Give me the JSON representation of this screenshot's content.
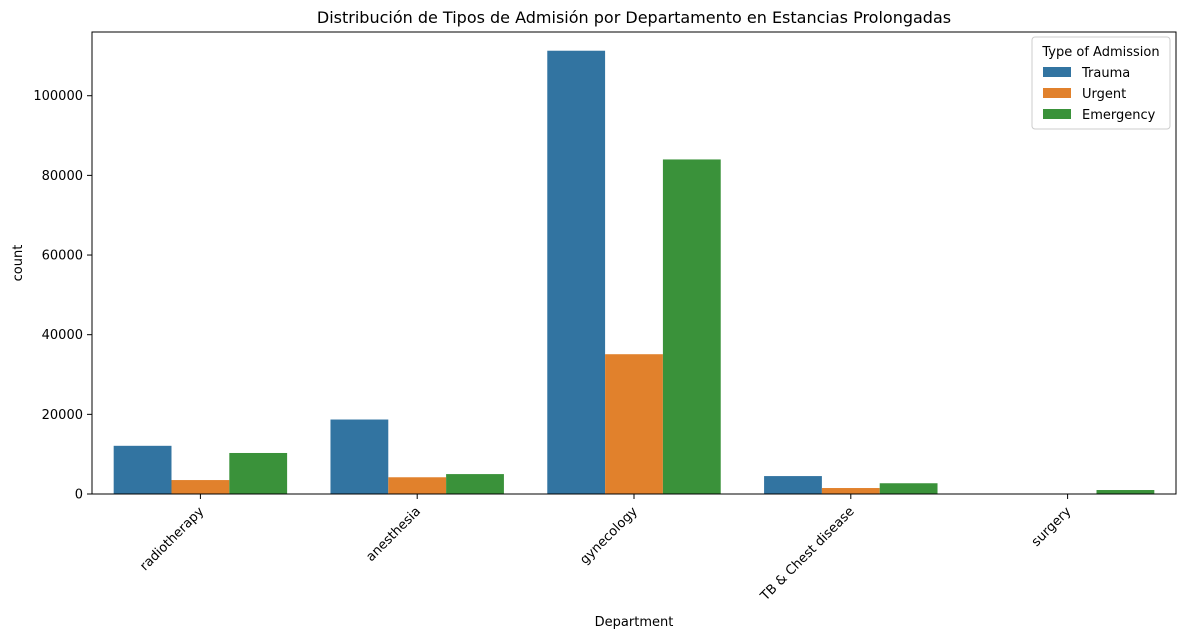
{
  "chart_data": {
    "type": "bar",
    "title": "Distribución de Tipos de Admisión por Departamento en Estancias Prolongadas",
    "xlabel": "Department",
    "ylabel": "count",
    "categories": [
      "radiotherapy",
      "anesthesia",
      "gynecology",
      "TB & Chest disease",
      "surgery"
    ],
    "series": [
      {
        "name": "Trauma",
        "color": "#3274a1",
        "values": [
          12100,
          18700,
          111300,
          4500,
          0
        ]
      },
      {
        "name": "Urgent",
        "color": "#e1812c",
        "values": [
          3500,
          4200,
          35100,
          1500,
          0
        ]
      },
      {
        "name": "Emergency",
        "color": "#3a923a",
        "values": [
          10300,
          5000,
          84000,
          2700,
          1000
        ]
      }
    ],
    "ylim": [
      0,
      116000
    ],
    "yticks": [
      0,
      20000,
      40000,
      60000,
      80000,
      100000
    ],
    "legend": {
      "title": "Type of Admission",
      "placement": "top-right"
    },
    "grid": false
  }
}
